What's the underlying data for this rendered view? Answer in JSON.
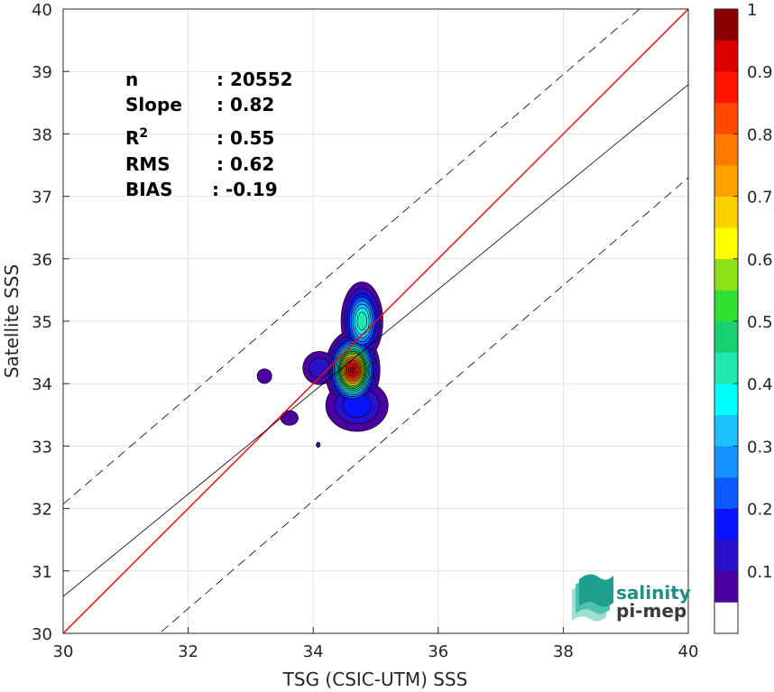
{
  "chart_data": {
    "type": "heatmap",
    "xlabel": "TSG (CSIC-UTM) SSS",
    "ylabel": "Satellite SSS",
    "xlim": [
      30,
      40
    ],
    "ylim": [
      30,
      40
    ],
    "x_ticks": [
      "30",
      "32",
      "34",
      "36",
      "38",
      "40"
    ],
    "y_ticks": [
      "30",
      "31",
      "32",
      "33",
      "34",
      "35",
      "36",
      "37",
      "38",
      "39",
      "40"
    ],
    "grid": true,
    "lines": [
      {
        "name": "1:1",
        "color": "#ff0000",
        "style": "solid",
        "points": [
          [
            30,
            30
          ],
          [
            40,
            40
          ]
        ]
      },
      {
        "name": "fit",
        "color": "#000000",
        "style": "solid",
        "points": [
          [
            30,
            30.59
          ],
          [
            40,
            38.79
          ]
        ]
      },
      {
        "name": "upper",
        "color": "#000000",
        "style": "dashed",
        "points": [
          [
            30,
            32.07
          ],
          [
            40,
            40.67
          ]
        ]
      },
      {
        "name": "lower",
        "color": "#000000",
        "style": "dashed",
        "points": [
          [
            30,
            28.67
          ],
          [
            40,
            37.3
          ]
        ]
      }
    ],
    "contour_levels": [
      0.05,
      0.1,
      0.15,
      0.2,
      0.25,
      0.3,
      0.35,
      0.4,
      0.45,
      0.5,
      0.55,
      0.6,
      0.65,
      0.7,
      0.75,
      0.8,
      0.85,
      0.9,
      0.95
    ],
    "density_peaks": [
      {
        "x": 34.63,
        "y": 34.22,
        "peak": 0.97,
        "sx": 0.18,
        "sy": 0.26
      },
      {
        "x": 34.78,
        "y": 35.0,
        "peak": 0.45,
        "sx": 0.16,
        "sy": 0.3
      },
      {
        "x": 34.7,
        "y": 33.65,
        "peak": 0.2,
        "sx": 0.3,
        "sy": 0.25
      },
      {
        "x": 34.1,
        "y": 34.25,
        "peak": 0.15,
        "sx": 0.18,
        "sy": 0.18
      },
      {
        "x": 33.22,
        "y": 34.12,
        "peak": 0.1,
        "sx": 0.1,
        "sy": 0.1
      },
      {
        "x": 33.62,
        "y": 33.45,
        "peak": 0.1,
        "sx": 0.12,
        "sy": 0.1
      },
      {
        "x": 34.08,
        "y": 33.02,
        "peak": 0.07,
        "sx": 0.04,
        "sy": 0.05
      }
    ],
    "colorbar": {
      "ticks": [
        "0.1",
        "0.2",
        "0.3",
        "0.4",
        "0.5",
        "0.6",
        "0.7",
        "0.8",
        "0.9",
        "1"
      ],
      "colors": [
        "#ffffff",
        "#4b00a0",
        "#2a10c8",
        "#0a14ff",
        "#0a5aff",
        "#1490ff",
        "#1ec0ff",
        "#00ffff",
        "#20e8b0",
        "#18d070",
        "#30e030",
        "#8ee018",
        "#ffff00",
        "#ffd000",
        "#ffa000",
        "#ff7800",
        "#ff4800",
        "#ff1400",
        "#dc0000",
        "#8a0000"
      ]
    },
    "stats": [
      {
        "label": "n",
        "value": ": 20552"
      },
      {
        "label": "Slope",
        "value": ": 0.82"
      },
      {
        "label": "R",
        "sup": "2",
        "value": ": 0.55"
      },
      {
        "label": "RMS",
        "value": ": 0.62"
      },
      {
        "label": "BIAS",
        "value": ": -0.19"
      }
    ]
  },
  "logo": {
    "line1": "salinity",
    "line2": "pi-mep"
  }
}
